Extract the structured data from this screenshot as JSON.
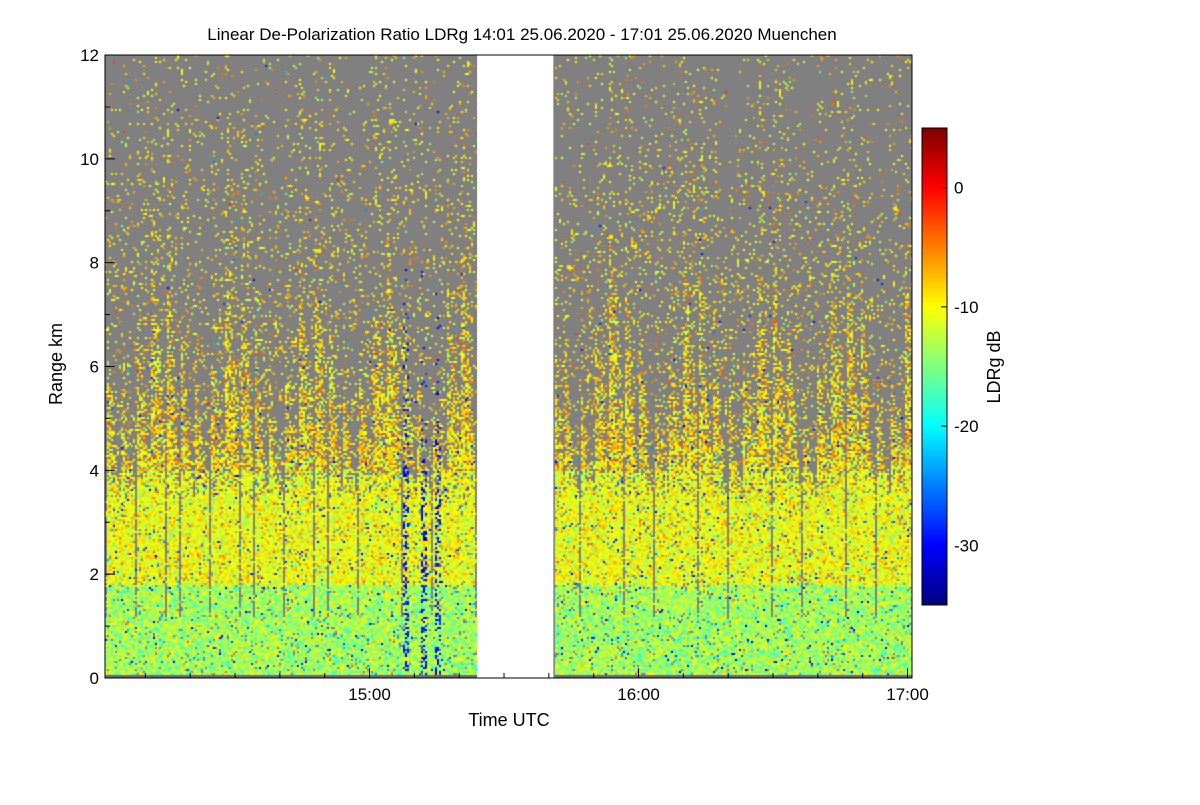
{
  "chart_data": {
    "type": "heatmap",
    "title": "Linear De-Polarization Ratio LDRg   14:01 25.06.2020 - 17:01 25.06.2020 Muenchen",
    "xlabel": "Time UTC",
    "ylabel": "Range km",
    "xlim": [
      "14:01",
      "17:01"
    ],
    "xlim_minutes": [
      841,
      1021
    ],
    "x_ticks": [
      {
        "label": "15:00",
        "minute": 900
      },
      {
        "label": "16:00",
        "minute": 960
      },
      {
        "label": "17:00",
        "minute": 1020
      }
    ],
    "x_minor_tick_minutes": [
      850,
      860,
      870,
      880,
      890,
      910,
      920,
      930,
      940,
      950,
      970,
      980,
      990,
      1000,
      1010
    ],
    "ylim": [
      0,
      12
    ],
    "y_ticks": [
      0,
      2,
      4,
      6,
      8,
      10,
      12
    ],
    "data_gap": {
      "start_minute": 924,
      "end_minute": 941
    },
    "no_signal_color": "#808080",
    "colorbar": {
      "label": "LDRg dB",
      "range": [
        -35,
        5
      ],
      "ticks": [
        0,
        -10,
        -20,
        -30
      ],
      "colormap": [
        "#00007f",
        "#0000ff",
        "#007fff",
        "#00ffff",
        "#7fff7f",
        "#ffff00",
        "#ff7f00",
        "#ff0000",
        "#7f0000"
      ]
    },
    "profile": {
      "description": "Convective plume structure: LDR mostly -8 to -14 dB below ~4 km, scattered above, dark-blue streaks near 15:00-15:15",
      "plume_spacing_minutes": 3.3,
      "plume_top_km": [
        6,
        9
      ],
      "low_ldr_streak_minutes": [
        908,
        912,
        915
      ]
    }
  }
}
